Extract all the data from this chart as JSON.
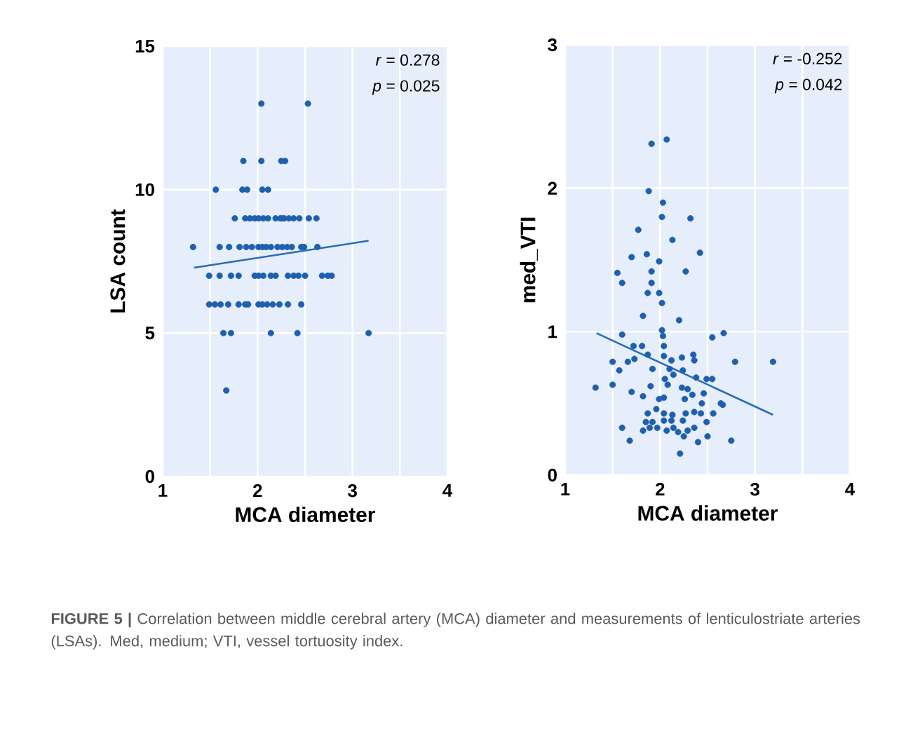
{
  "chart_data": [
    {
      "type": "scatter",
      "xlabel": "MCA diameter",
      "ylabel": "LSA count",
      "xlim": [
        1,
        4
      ],
      "ylim": [
        0,
        15
      ],
      "xticks": [
        1,
        {
          "value": 1.5,
          "label": null
        },
        2,
        {
          "value": 2.5,
          "label": null
        },
        3,
        {
          "value": 3.5,
          "label": null
        },
        4
      ],
      "yticks": [
        0,
        5,
        10,
        15
      ],
      "grid": true,
      "marker": "circle",
      "annotations": [
        "*r* = 0.278",
        "*p* = 0.025",
        "**FIGURE 5 |** Correlation between middle cerebral artery (MCA) diameter and measurements of lenticulostriate arteries (LSAs). Med, medium; VTI, vessel tortuosity index."
      ],
      "series": [
        {
          "type": "scatter",
          "color": "#1f5fae",
          "x": [
            2.04,
            2.53,
            1.85,
            2.04,
            2.25,
            2.29,
            1.56,
            1.84,
            1.89,
            2.05,
            2.11,
            1.76,
            1.87,
            1.92,
            1.97,
            2.01,
            2.06,
            2.11,
            2.19,
            2.26,
            2.24,
            2.28,
            2.33,
            2.38,
            2.44,
            2.54,
            2.62,
            1.32,
            1.6,
            1.7,
            1.81,
            1.88,
            1.94,
            2.01,
            2.05,
            2.09,
            2.14,
            2.21,
            2.26,
            2.31,
            2.36,
            2.46,
            2.49,
            2.63,
            1.49,
            1.6,
            1.72,
            1.8,
            1.97,
            2.01,
            2.06,
            2.14,
            2.19,
            2.32,
            2.38,
            2.43,
            2.5,
            2.68,
            2.74,
            2.78,
            1.49,
            1.55,
            1.61,
            1.69,
            1.8,
            1.87,
            1.9,
            2.01,
            2.05,
            2.1,
            2.16,
            2.23,
            2.32,
            2.46,
            1.64,
            1.72,
            2.14,
            2.42,
            3.17,
            1.67
          ],
          "values": [
            13,
            13,
            11,
            11,
            11,
            11,
            10,
            10,
            10,
            10,
            10,
            9,
            9,
            9,
            9,
            9,
            9,
            9,
            9,
            9,
            9,
            9,
            9,
            9,
            9,
            9,
            9,
            8,
            8,
            8,
            8,
            8,
            8,
            8,
            8,
            8,
            8,
            8,
            8,
            8,
            8,
            8,
            8,
            8,
            7,
            7,
            7,
            7,
            7,
            7,
            7,
            7,
            7,
            7,
            7,
            7,
            7,
            7,
            7,
            7,
            6,
            6,
            6,
            6,
            6,
            6,
            6,
            6,
            6,
            6,
            6,
            6,
            6,
            6,
            5,
            5,
            5,
            5,
            5,
            3
          ]
        },
        {
          "type": "line",
          "color": "#2a6db5",
          "marker": "none",
          "x": [
            1.33,
            3.17
          ],
          "values": [
            7.28,
            8.22
          ]
        }
      ]
    },
    {
      "type": "scatter",
      "xlabel": "MCA diameter",
      "ylabel": "med_VTI",
      "xlim": [
        1,
        4
      ],
      "ylim": [
        0,
        3
      ],
      "xticks": [
        1,
        {
          "value": 1.5,
          "label": null
        },
        2,
        {
          "value": 2.5,
          "label": null
        },
        3,
        {
          "value": 3.5,
          "label": null
        },
        4
      ],
      "yticks": [
        0,
        1,
        2,
        3
      ],
      "grid": true,
      "marker": "circle",
      "annotations": [
        "*r* = -0.252",
        "*p* = 0.042"
      ],
      "series": [
        {
          "type": "scatter",
          "color": "#1f5fae",
          "x": [
            1.91,
            2.07,
            1.88,
            2.03,
            2.02,
            2.32,
            1.77,
            2.13,
            2.42,
            1.7,
            1.86,
            1.99,
            2.27,
            1.91,
            1.55,
            1.6,
            1.91,
            1.87,
            1.99,
            2.02,
            1.82,
            2.2,
            1.6,
            2.02,
            2.03,
            2.55,
            2.67,
            1.72,
            1.81,
            2.04,
            1.5,
            1.66,
            1.73,
            1.87,
            2.04,
            2.35,
            2.23,
            2.36,
            2.79,
            3.19,
            1.57,
            1.92,
            2.12,
            2.1,
            2.14,
            2.24,
            2.38,
            2.49,
            2.55,
            1.32,
            1.5,
            1.7,
            1.9,
            2.05,
            2.08,
            2.23,
            2.29,
            2.34,
            1.82,
            1.99,
            2.04,
            2.26,
            2.46,
            2.44,
            2.64,
            2.66,
            1.96,
            1.87,
            2.04,
            2.13,
            2.27,
            2.36,
            2.43,
            2.56,
            1.85,
            1.92,
            2.04,
            2.12,
            2.24,
            2.49,
            1.6,
            1.82,
            1.89,
            1.97,
            2.07,
            2.14,
            2.19,
            2.29,
            2.36,
            2.25,
            2.5,
            1.68,
            2.4,
            2.75,
            2.21
          ],
          "values": [
            2.31,
            2.34,
            1.98,
            1.9,
            1.8,
            1.79,
            1.71,
            1.64,
            1.55,
            1.52,
            1.54,
            1.49,
            1.42,
            1.42,
            1.41,
            1.34,
            1.34,
            1.27,
            1.27,
            1.2,
            1.11,
            1.08,
            0.98,
            1.01,
            0.97,
            0.96,
            0.99,
            0.9,
            0.9,
            0.9,
            0.79,
            0.79,
            0.81,
            0.84,
            0.83,
            0.84,
            0.82,
            0.8,
            0.79,
            0.79,
            0.73,
            0.74,
            0.8,
            0.74,
            0.7,
            0.73,
            0.68,
            0.67,
            0.67,
            0.61,
            0.63,
            0.58,
            0.62,
            0.67,
            0.63,
            0.61,
            0.6,
            0.56,
            0.55,
            0.53,
            0.54,
            0.53,
            0.57,
            0.5,
            0.5,
            0.49,
            0.46,
            0.43,
            0.43,
            0.42,
            0.43,
            0.44,
            0.43,
            0.43,
            0.37,
            0.37,
            0.38,
            0.38,
            0.38,
            0.37,
            0.33,
            0.31,
            0.33,
            0.33,
            0.31,
            0.33,
            0.3,
            0.31,
            0.33,
            0.27,
            0.27,
            0.24,
            0.23,
            0.24,
            0.15
          ]
        },
        {
          "type": "line",
          "color": "#2a6db5",
          "marker": "none",
          "x": [
            1.33,
            3.19
          ],
          "values": [
            0.99,
            0.42
          ]
        }
      ]
    }
  ]
}
